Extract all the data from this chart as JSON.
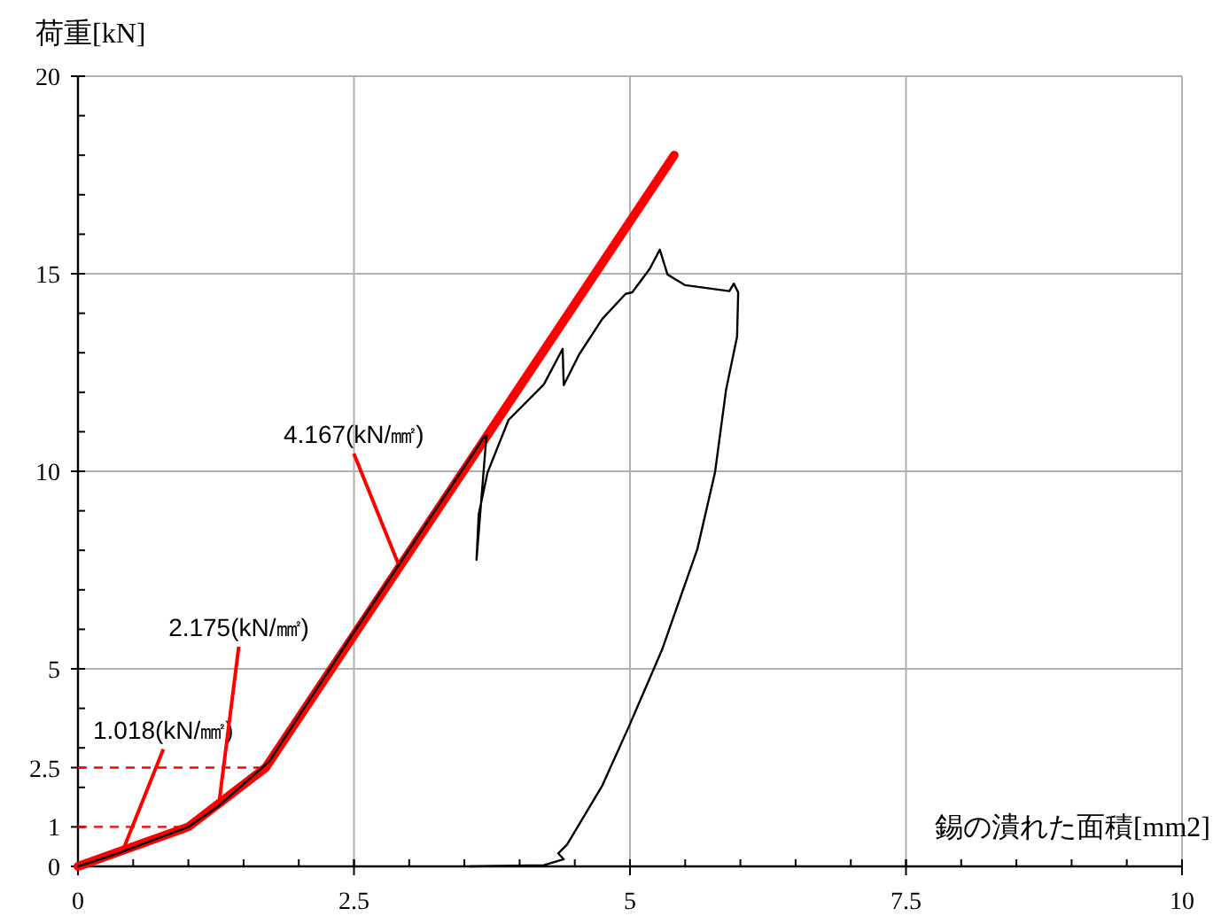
{
  "chart_data": {
    "type": "line",
    "xlabel": "錫の潰れた面積[mm2]",
    "ylabel": "荷重[kN]",
    "xlim": [
      0,
      10
    ],
    "ylim": [
      0,
      20
    ],
    "xticks": [
      0,
      2.5,
      5,
      7.5,
      10
    ],
    "yticks": [
      0,
      1,
      2.5,
      5,
      10,
      15,
      20
    ],
    "grid": true,
    "series": [
      {
        "color": "#ff0000",
        "x": [
          0,
          1.0,
          1.7,
          5.4
        ],
        "values": [
          0,
          1.0,
          2.5,
          18
        ]
      },
      {
        "color": "#000000",
        "x": [
          0,
          0.36,
          1.0,
          1.27,
          1.73,
          2.5,
          3.68,
          3.7,
          3.61,
          3.63,
          3.71,
          3.9,
          4.22,
          4.39,
          4.4,
          4.54,
          4.75,
          4.96,
          5.02,
          5.18,
          5.27,
          5.34,
          5.5,
          5.9,
          5.94,
          5.98,
          5.97,
          5.87,
          5.77,
          5.61,
          5.29,
          4.99,
          4.75,
          4.43,
          4.35,
          4.4,
          4.22,
          3.55
        ],
        "values": [
          0,
          0.33,
          1.0,
          1.52,
          2.65,
          5.93,
          10.87,
          10.91,
          7.76,
          8.92,
          9.97,
          11.3,
          12.2,
          13.1,
          12.18,
          12.96,
          13.86,
          14.49,
          14.53,
          15.13,
          15.61,
          14.98,
          14.71,
          14.56,
          14.75,
          14.53,
          13.41,
          12.06,
          9.97,
          8.03,
          5.48,
          3.54,
          2.05,
          0.55,
          0.33,
          0.18,
          0.03,
          0
        ]
      }
    ],
    "ref_lines": [
      {
        "axis": "y",
        "value": 1,
        "color": "#ff0000",
        "line_style": "dashed"
      },
      {
        "axis": "y",
        "value": 2.5,
        "color": "#ff0000",
        "line_style": "dashed"
      }
    ],
    "annotations": [
      {
        "text": "1.018(kN/㎟)",
        "x": 0.42,
        "y": 0.5
      },
      {
        "text": "2.175(kN/㎟)",
        "x": 1.28,
        "y": 1.66
      },
      {
        "text": "4.167(kN/㎟)",
        "x": 2.9,
        "y": 7.67
      }
    ]
  }
}
